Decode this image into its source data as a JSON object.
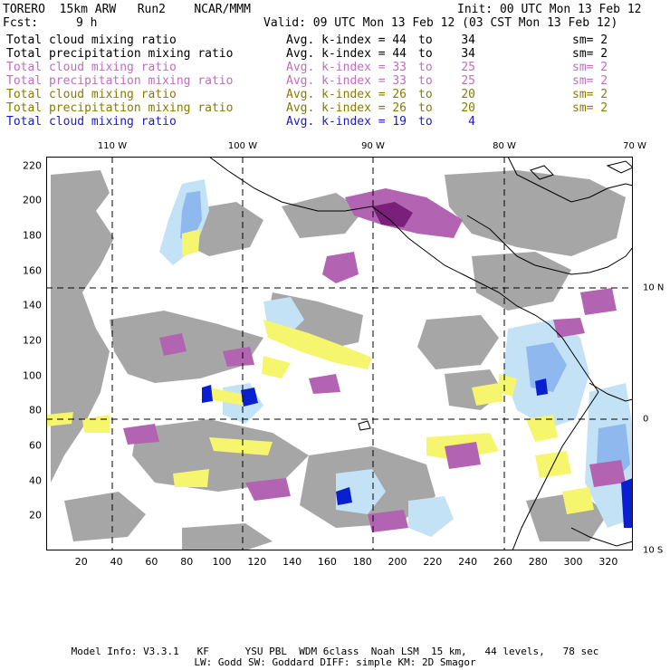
{
  "header": {
    "title": "TORERO  15km ARW   Run2    NCAR/MMM",
    "init": "Init: 00 UTC Mon 13 Feb 12",
    "fcst_label": "Fcst:",
    "fcst_value": "9 h",
    "valid": "Valid: 09 UTC Mon 13 Feb 12 (03 CST Mon 13 Feb 12)"
  },
  "legend": [
    {
      "label": "Total cloud mixing ratio",
      "ktext": "Avg. k-index =",
      "from": "44",
      "to_word": "to",
      "to": "34",
      "sm": "sm= 2",
      "color": "#000000"
    },
    {
      "label": "Total precipitation mixing ratio",
      "ktext": "Avg. k-index =",
      "from": "44",
      "to_word": "to",
      "to": "34",
      "sm": "sm= 2",
      "color": "#000000"
    },
    {
      "label": "Total cloud mixing ratio",
      "ktext": "Avg. k-index =",
      "from": "33",
      "to_word": "to",
      "to": "25",
      "sm": "sm= 2",
      "color": "#c06cc0"
    },
    {
      "label": "Total precipitation mixing ratio",
      "ktext": "Avg. k-index =",
      "from": "33",
      "to_word": "to",
      "to": "25",
      "sm": "sm= 2",
      "color": "#c06cc0"
    },
    {
      "label": "Total cloud mixing ratio",
      "ktext": "Avg. k-index =",
      "from": "26",
      "to_word": "to",
      "to": "20",
      "sm": "sm= 2",
      "color": "#8a7a00"
    },
    {
      "label": "Total precipitation mixing ratio",
      "ktext": "Avg. k-index =",
      "from": "26",
      "to_word": "to",
      "to": "20",
      "sm": "sm= 2",
      "color": "#8a7a00"
    },
    {
      "label": "Total cloud mixing ratio",
      "ktext": "Avg. k-index =",
      "from": "19",
      "to_word": "to",
      "to": "4",
      "sm": "",
      "color": "#1a1acc"
    }
  ],
  "map": {
    "lon_labels": [
      "110 W",
      "100 W",
      "90 W",
      "80 W",
      "70 W"
    ],
    "lat_labels": [
      "10 N",
      "0",
      "10 S"
    ],
    "x_ticks": [
      "20",
      "40",
      "60",
      "80",
      "100",
      "120",
      "140",
      "160",
      "180",
      "200",
      "220",
      "240",
      "260",
      "280",
      "300",
      "320"
    ],
    "y_ticks": [
      "20",
      "40",
      "60",
      "80",
      "100",
      "120",
      "140",
      "160",
      "180",
      "200",
      "220"
    ],
    "colors": {
      "cloud_gray": "#a6a6a6",
      "cloud_purple": "#b264b2",
      "cloud_purple_dark": "#7a1f7a",
      "precip_yellow": "#f5f56e",
      "light_blue": "#c4e2f5",
      "mid_blue": "#8fb8ef",
      "deep_blue": "#0a1fd0",
      "coast": "#000000"
    }
  },
  "footer": {
    "line1": "Model Info: V3.3.1   KF      YSU PBL  WDM 6class  Noah LSM  15 km,   44 levels,   78 sec",
    "line2": "LW: Godd SW: Goddard DIFF: simple KM: 2D Smagor"
  }
}
